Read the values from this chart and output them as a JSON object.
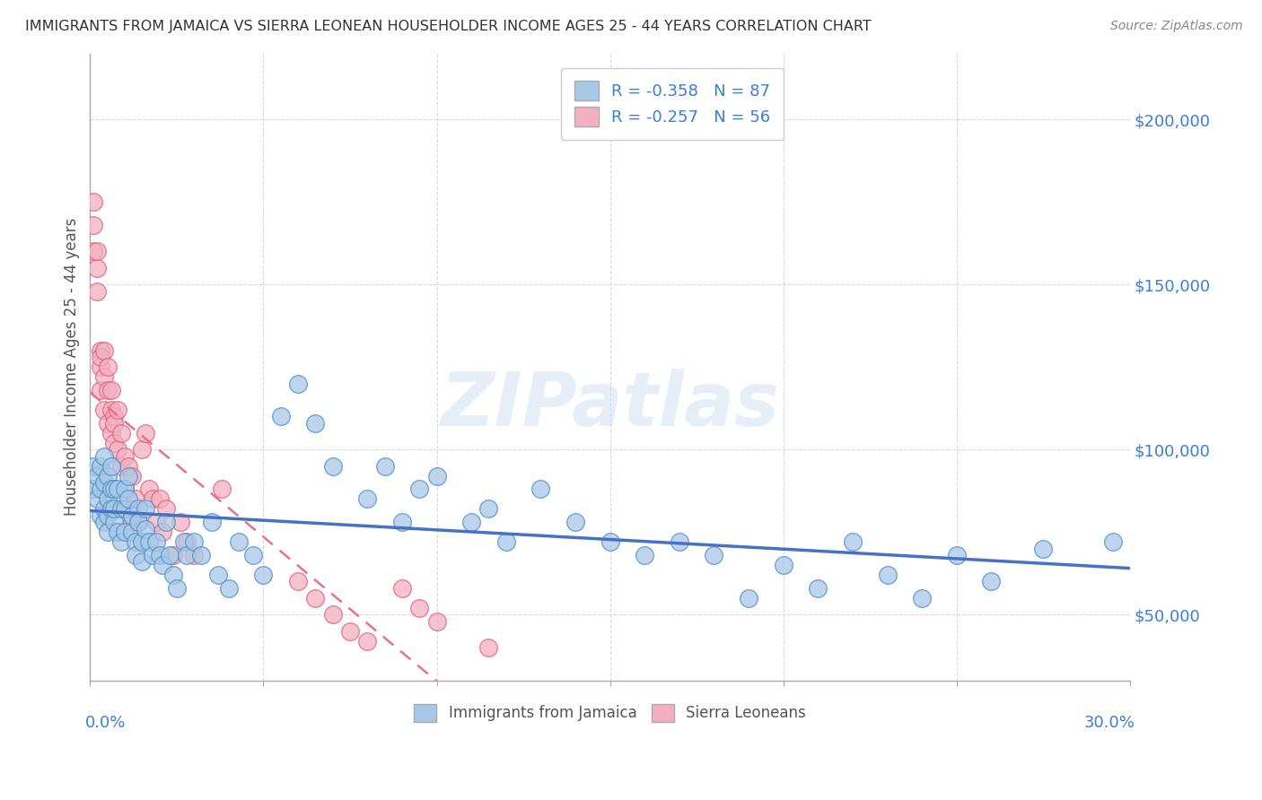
{
  "title": "IMMIGRANTS FROM JAMAICA VS SIERRA LEONEAN HOUSEHOLDER INCOME AGES 25 - 44 YEARS CORRELATION CHART",
  "source": "Source: ZipAtlas.com",
  "ylabel": "Householder Income Ages 25 - 44 years",
  "watermark": "ZIPatlas",
  "jamaica_color": "#a8c8e8",
  "jamaica_edge": "#5090c8",
  "sierraleone_color": "#f4b0c0",
  "sierraleone_edge": "#e06080",
  "trend_jamaica_color": "#4472c4",
  "trend_sierraleone_color": "#e87090",
  "xlim": [
    0.0,
    0.3
  ],
  "ylim": [
    30000,
    220000
  ],
  "yticks": [
    50000,
    100000,
    150000,
    200000
  ],
  "ytick_labels": [
    "$50,000",
    "$100,000",
    "$150,000",
    "$200,000"
  ],
  "jamaica_x": [
    0.001,
    0.001,
    0.002,
    0.002,
    0.003,
    0.003,
    0.003,
    0.004,
    0.004,
    0.004,
    0.004,
    0.005,
    0.005,
    0.005,
    0.005,
    0.006,
    0.006,
    0.006,
    0.007,
    0.007,
    0.007,
    0.008,
    0.008,
    0.009,
    0.009,
    0.01,
    0.01,
    0.01,
    0.011,
    0.011,
    0.012,
    0.012,
    0.013,
    0.013,
    0.014,
    0.014,
    0.015,
    0.015,
    0.016,
    0.016,
    0.017,
    0.018,
    0.019,
    0.02,
    0.021,
    0.022,
    0.023,
    0.024,
    0.025,
    0.027,
    0.028,
    0.03,
    0.032,
    0.035,
    0.037,
    0.04,
    0.043,
    0.047,
    0.05,
    0.055,
    0.06,
    0.065,
    0.07,
    0.08,
    0.085,
    0.09,
    0.095,
    0.1,
    0.11,
    0.115,
    0.12,
    0.13,
    0.14,
    0.15,
    0.16,
    0.17,
    0.18,
    0.19,
    0.2,
    0.21,
    0.22,
    0.23,
    0.24,
    0.25,
    0.26,
    0.275,
    0.295
  ],
  "jamaica_y": [
    88000,
    95000,
    85000,
    92000,
    80000,
    88000,
    95000,
    82000,
    78000,
    90000,
    98000,
    85000,
    92000,
    75000,
    80000,
    88000,
    82000,
    95000,
    88000,
    78000,
    82000,
    88000,
    75000,
    82000,
    72000,
    88000,
    82000,
    75000,
    92000,
    85000,
    75000,
    80000,
    72000,
    68000,
    82000,
    78000,
    72000,
    66000,
    82000,
    76000,
    72000,
    68000,
    72000,
    68000,
    65000,
    78000,
    68000,
    62000,
    58000,
    72000,
    68000,
    72000,
    68000,
    78000,
    62000,
    58000,
    72000,
    68000,
    62000,
    110000,
    120000,
    108000,
    95000,
    85000,
    95000,
    78000,
    88000,
    92000,
    78000,
    82000,
    72000,
    88000,
    78000,
    72000,
    68000,
    72000,
    68000,
    55000,
    65000,
    58000,
    72000,
    62000,
    55000,
    68000,
    60000,
    70000,
    72000
  ],
  "sierraleone_x": [
    0.001,
    0.001,
    0.001,
    0.002,
    0.002,
    0.002,
    0.003,
    0.003,
    0.003,
    0.003,
    0.004,
    0.004,
    0.004,
    0.005,
    0.005,
    0.005,
    0.006,
    0.006,
    0.006,
    0.007,
    0.007,
    0.007,
    0.008,
    0.008,
    0.009,
    0.009,
    0.01,
    0.01,
    0.011,
    0.011,
    0.012,
    0.012,
    0.013,
    0.014,
    0.015,
    0.016,
    0.017,
    0.018,
    0.019,
    0.02,
    0.021,
    0.022,
    0.024,
    0.026,
    0.028,
    0.03,
    0.038,
    0.06,
    0.065,
    0.07,
    0.075,
    0.08,
    0.09,
    0.095,
    0.1,
    0.115
  ],
  "sierraleone_y": [
    175000,
    160000,
    168000,
    155000,
    148000,
    160000,
    130000,
    125000,
    118000,
    128000,
    122000,
    112000,
    130000,
    125000,
    118000,
    108000,
    112000,
    105000,
    118000,
    110000,
    102000,
    108000,
    112000,
    100000,
    105000,
    95000,
    98000,
    88000,
    95000,
    82000,
    92000,
    78000,
    85000,
    78000,
    100000,
    105000,
    88000,
    85000,
    78000,
    85000,
    75000,
    82000,
    68000,
    78000,
    72000,
    68000,
    88000,
    60000,
    55000,
    50000,
    45000,
    42000,
    58000,
    52000,
    48000,
    40000
  ]
}
